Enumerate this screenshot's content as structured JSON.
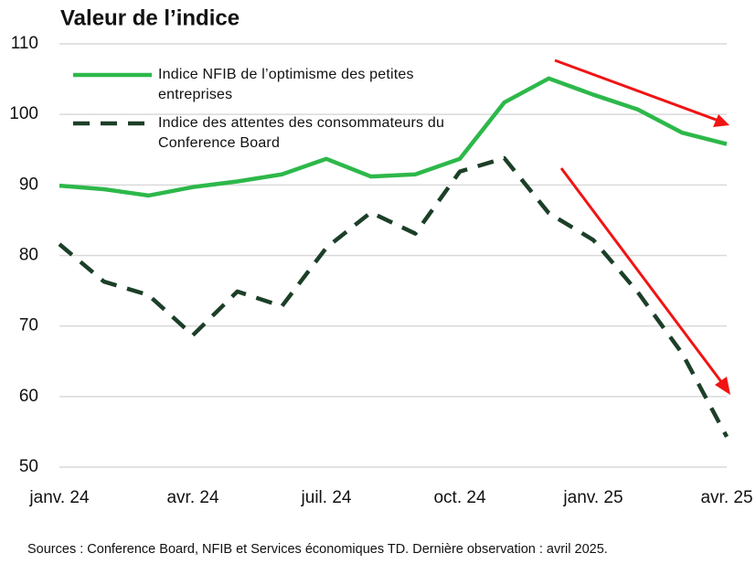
{
  "chart_data": {
    "type": "line",
    "title": "Valeur de l’indice",
    "categories": [
      "janv. 24",
      null,
      null,
      "avr. 24",
      null,
      null,
      "juil. 24",
      null,
      null,
      "oct. 24",
      null,
      null,
      "janv. 25",
      null,
      null,
      "avr. 25"
    ],
    "series": [
      {
        "name": "Indice NFIB de l’optimisme des petites entreprises",
        "color": "#2db84a",
        "dashed": false,
        "values": [
          89.9,
          89.4,
          88.5,
          89.7,
          90.5,
          91.5,
          93.7,
          91.2,
          91.5,
          93.7,
          101.7,
          105.1,
          102.8,
          100.7,
          97.4,
          95.8
        ]
      },
      {
        "name": "Indice des attentes des consommateurs du Conference Board",
        "color": "#1c3f28",
        "dashed": true,
        "values": [
          81.6,
          76.3,
          74.4,
          68.7,
          74.9,
          72.8,
          81.1,
          86.1,
          83.1,
          91.9,
          93.8,
          86.0,
          82.2,
          74.8,
          66.1,
          54.3
        ]
      }
    ],
    "ylim": [
      50,
      110
    ],
    "yticks": [
      50,
      60,
      70,
      80,
      90,
      100,
      110
    ],
    "grid": true,
    "source": "Sources : Conference Board, NFIB et Services économiques TD. Dernière observation : avril 2025."
  }
}
